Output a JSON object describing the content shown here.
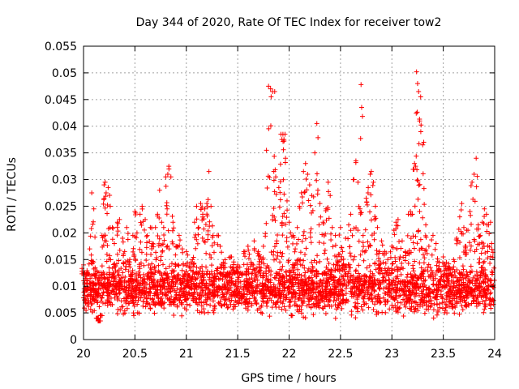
{
  "chart_data": {
    "type": "scatter",
    "title": "Day 344 of 2020, Rate Of TEC Index for receiver tow2",
    "xlabel": "GPS time / hours",
    "ylabel": "ROTI / TECUs",
    "xlim": [
      20,
      24
    ],
    "ylim": [
      0,
      0.055
    ],
    "xticks": [
      {
        "value": 20,
        "label": "20"
      },
      {
        "value": 20.5,
        "label": "20.5"
      },
      {
        "value": 21,
        "label": "21"
      },
      {
        "value": 21.5,
        "label": "21.5"
      },
      {
        "value": 22,
        "label": "22"
      },
      {
        "value": 22.5,
        "label": "22.5"
      },
      {
        "value": 23,
        "label": "23"
      },
      {
        "value": 23.5,
        "label": "23.5"
      },
      {
        "value": 24,
        "label": "24"
      }
    ],
    "yticks": [
      {
        "value": 0,
        "label": "0"
      },
      {
        "value": 0.005,
        "label": "0.005"
      },
      {
        "value": 0.01,
        "label": "0.01"
      },
      {
        "value": 0.015,
        "label": "0.015"
      },
      {
        "value": 0.02,
        "label": "0.02"
      },
      {
        "value": 0.025,
        "label": "0.025"
      },
      {
        "value": 0.03,
        "label": "0.03"
      },
      {
        "value": 0.035,
        "label": "0.035"
      },
      {
        "value": 0.04,
        "label": "0.04"
      },
      {
        "value": 0.045,
        "label": "0.045"
      },
      {
        "value": 0.05,
        "label": "0.05"
      },
      {
        "value": 0.055,
        "label": "0.055"
      }
    ],
    "grid": true,
    "marker": "plus",
    "color": "#ff0000",
    "series": [
      {
        "name": "ROTI",
        "bulk_band": {
          "x_range": [
            20.0,
            24.0
          ],
          "y_center": 0.0095,
          "y_spread": 0.0045,
          "y_min": 0.003,
          "count": 2600
        },
        "points": [
          [
            20.0,
            0.014
          ],
          [
            20.02,
            0.0095
          ],
          [
            20.04,
            0.0125
          ],
          [
            20.06,
            0.017
          ],
          [
            20.08,
            0.0275
          ],
          [
            20.1,
            0.0245
          ],
          [
            20.12,
            0.012
          ],
          [
            20.13,
            0.004
          ],
          [
            20.15,
            0.0035
          ],
          [
            20.17,
            0.0045
          ],
          [
            20.18,
            0.0195
          ],
          [
            20.2,
            0.029
          ],
          [
            20.21,
            0.0295
          ],
          [
            20.22,
            0.0275
          ],
          [
            20.24,
            0.0285
          ],
          [
            20.26,
            0.025
          ],
          [
            20.28,
            0.021
          ],
          [
            20.3,
            0.018
          ],
          [
            20.33,
            0.022
          ],
          [
            20.35,
            0.0225
          ],
          [
            20.38,
            0.019
          ],
          [
            20.4,
            0.0165
          ],
          [
            20.42,
            0.021
          ],
          [
            20.45,
            0.015
          ],
          [
            20.48,
            0.0195
          ],
          [
            20.5,
            0.024
          ],
          [
            20.52,
            0.02
          ],
          [
            20.55,
            0.0235
          ],
          [
            20.57,
            0.025
          ],
          [
            20.6,
            0.0225
          ],
          [
            20.62,
            0.0195
          ],
          [
            20.65,
            0.021
          ],
          [
            20.67,
            0.018
          ],
          [
            20.7,
            0.021
          ],
          [
            20.72,
            0.0235
          ],
          [
            20.74,
            0.028
          ],
          [
            20.76,
            0.022
          ],
          [
            20.78,
            0.021
          ],
          [
            20.8,
            0.0305
          ],
          [
            20.82,
            0.031
          ],
          [
            20.83,
            0.0325
          ],
          [
            20.85,
            0.0305
          ],
          [
            20.87,
            0.022
          ],
          [
            20.9,
            0.0175
          ],
          [
            20.93,
            0.0195
          ],
          [
            20.96,
            0.017
          ],
          [
            21.0,
            0.0165
          ],
          [
            21.03,
            0.012
          ],
          [
            21.06,
            0.015
          ],
          [
            21.08,
            0.022
          ],
          [
            21.1,
            0.025
          ],
          [
            21.12,
            0.021
          ],
          [
            21.14,
            0.0255
          ],
          [
            21.16,
            0.0235
          ],
          [
            21.18,
            0.0245
          ],
          [
            21.2,
            0.0255
          ],
          [
            21.22,
            0.0315
          ],
          [
            21.24,
            0.025
          ],
          [
            21.26,
            0.0195
          ],
          [
            21.3,
            0.0195
          ],
          [
            21.33,
            0.0175
          ],
          [
            21.36,
            0.0145
          ],
          [
            21.4,
            0.0125
          ],
          [
            21.43,
            0.0155
          ],
          [
            21.46,
            0.0135
          ],
          [
            21.5,
            0.014
          ],
          [
            21.53,
            0.0125
          ],
          [
            21.56,
            0.0165
          ],
          [
            21.6,
            0.0175
          ],
          [
            21.63,
            0.0145
          ],
          [
            21.66,
            0.0185
          ],
          [
            21.7,
            0.0165
          ],
          [
            21.72,
            0.0155
          ],
          [
            21.75,
            0.0175
          ],
          [
            21.78,
            0.0355
          ],
          [
            21.8,
            0.0475
          ],
          [
            21.82,
            0.047
          ],
          [
            21.84,
            0.0465
          ],
          [
            21.86,
            0.0465
          ],
          [
            21.87,
            0.0305
          ],
          [
            21.88,
            0.0185
          ],
          [
            21.9,
            0.0285
          ],
          [
            21.92,
            0.0385
          ],
          [
            21.93,
            0.0375
          ],
          [
            21.94,
            0.0385
          ],
          [
            21.95,
            0.0375
          ],
          [
            21.96,
            0.0385
          ],
          [
            21.98,
            0.026
          ],
          [
            22.0,
            0.022
          ],
          [
            22.02,
            0.0045
          ],
          [
            22.04,
            0.0195
          ],
          [
            22.06,
            0.017
          ],
          [
            22.08,
            0.021
          ],
          [
            22.1,
            0.025
          ],
          [
            22.12,
            0.0275
          ],
          [
            22.14,
            0.0315
          ],
          [
            22.16,
            0.033
          ],
          [
            22.18,
            0.031
          ],
          [
            22.2,
            0.029
          ],
          [
            22.22,
            0.027
          ],
          [
            22.25,
            0.035
          ],
          [
            22.27,
            0.0405
          ],
          [
            22.28,
            0.028
          ],
          [
            22.3,
            0.0255
          ],
          [
            22.33,
            0.022
          ],
          [
            22.36,
            0.0245
          ],
          [
            22.38,
            0.0295
          ],
          [
            22.4,
            0.027
          ],
          [
            22.42,
            0.021
          ],
          [
            22.45,
            0.0195
          ],
          [
            22.48,
            0.016
          ],
          [
            22.5,
            0.021
          ],
          [
            22.52,
            0.0165
          ],
          [
            22.55,
            0.019
          ],
          [
            22.58,
            0.0215
          ],
          [
            22.6,
            0.0235
          ],
          [
            22.63,
            0.03
          ],
          [
            22.65,
            0.0335
          ],
          [
            22.67,
            0.0295
          ],
          [
            22.69,
            0.0245
          ],
          [
            22.7,
            0.0478
          ],
          [
            22.72,
            0.0195
          ],
          [
            22.75,
            0.0265
          ],
          [
            22.77,
            0.0285
          ],
          [
            22.79,
            0.031
          ],
          [
            22.8,
            0.0315
          ],
          [
            22.82,
            0.0295
          ],
          [
            22.84,
            0.025
          ],
          [
            22.86,
            0.021
          ],
          [
            22.88,
            0.0165
          ],
          [
            22.9,
            0.0185
          ],
          [
            22.93,
            0.0165
          ],
          [
            22.96,
            0.015
          ],
          [
            23.0,
            0.0175
          ],
          [
            23.02,
            0.0205
          ],
          [
            23.04,
            0.022
          ],
          [
            23.06,
            0.0225
          ],
          [
            23.08,
            0.0155
          ],
          [
            23.1,
            0.0185
          ],
          [
            23.13,
            0.0165
          ],
          [
            23.16,
            0.0235
          ],
          [
            23.18,
            0.024
          ],
          [
            23.2,
            0.0235
          ],
          [
            23.22,
            0.033
          ],
          [
            23.23,
            0.0325
          ],
          [
            23.24,
            0.0502
          ],
          [
            23.25,
            0.048
          ],
          [
            23.26,
            0.0465
          ],
          [
            23.27,
            0.024
          ],
          [
            23.28,
            0.0455
          ],
          [
            23.3,
            0.0365
          ],
          [
            23.31,
            0.037
          ],
          [
            23.33,
            0.0215
          ],
          [
            23.36,
            0.0175
          ],
          [
            23.4,
            0.0195
          ],
          [
            23.43,
            0.018
          ],
          [
            23.46,
            0.0145
          ],
          [
            23.5,
            0.0155
          ],
          [
            23.53,
            0.0145
          ],
          [
            23.56,
            0.0135
          ],
          [
            23.6,
            0.015
          ],
          [
            23.63,
            0.019
          ],
          [
            23.66,
            0.023
          ],
          [
            23.68,
            0.0255
          ],
          [
            23.7,
            0.021
          ],
          [
            23.72,
            0.0175
          ],
          [
            23.74,
            0.0205
          ],
          [
            23.76,
            0.024
          ],
          [
            23.78,
            0.0295
          ],
          [
            23.8,
            0.031
          ],
          [
            23.82,
            0.034
          ],
          [
            23.84,
            0.0215
          ],
          [
            23.86,
            0.0195
          ],
          [
            23.88,
            0.022
          ],
          [
            23.9,
            0.0245
          ],
          [
            23.92,
            0.0235
          ],
          [
            23.94,
            0.0215
          ],
          [
            23.96,
            0.022
          ],
          [
            23.97,
            0.018
          ]
        ]
      }
    ]
  }
}
